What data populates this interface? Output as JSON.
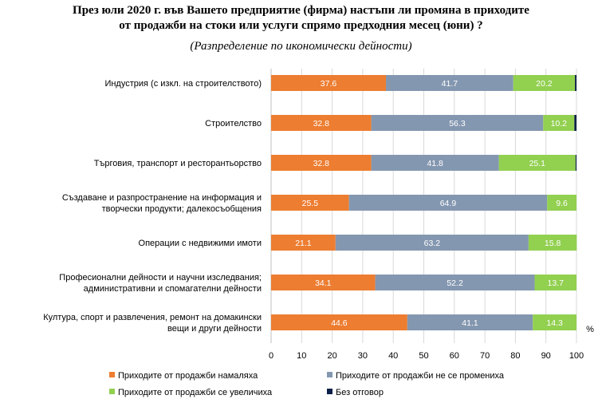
{
  "title_line1": "През юли 2020 г. във Вашето предприятие (фирма) настъпи ли промяна в приходите",
  "title_line2": "от продажби на стоки или услуги спрямо предходния месец (юни) ?",
  "subtitle": "(Разпределение по икономически дейности)",
  "chart_data": {
    "type": "bar",
    "orientation": "horizontal",
    "stacked": true,
    "unit_label": "%",
    "xlim": [
      0,
      100
    ],
    "xticks": [
      0,
      10,
      20,
      30,
      40,
      50,
      60,
      70,
      80,
      90,
      100
    ],
    "categories": [
      [
        "Индустрия (с изкл. на строителството)"
      ],
      [
        "Строителство"
      ],
      [
        "Търговия, транспорт и ресторантьорство"
      ],
      [
        "Създаване и разпространение на информация и",
        "творчески продукти; далекосъобщения"
      ],
      [
        "Операции с недвижими имоти"
      ],
      [
        "Професионални дейности и научни изследвания;",
        "административни и спомагателни дейности"
      ],
      [
        "Култура, спорт и развлечения, ремонт на домакински",
        "вещи и други дейности"
      ]
    ],
    "series": [
      {
        "name": "Приходите от продажби намаляха",
        "color": "#ed7d31",
        "values": [
          37.6,
          32.8,
          32.8,
          25.5,
          21.1,
          34.1,
          44.6
        ]
      },
      {
        "name": "Приходите от продажби не се промениха",
        "color": "#8497b0",
        "values": [
          41.7,
          56.3,
          41.8,
          64.9,
          63.2,
          52.2,
          41.1
        ]
      },
      {
        "name": "Приходите от продажби се увеличиха",
        "color": "#92d050",
        "values": [
          20.2,
          10.2,
          25.1,
          9.6,
          15.8,
          13.7,
          14.3
        ]
      },
      {
        "name": "Без отговор",
        "color": "#0b2049",
        "values": [
          0.5,
          0.7,
          0.3,
          0.0,
          0.0,
          0.0,
          0.0
        ]
      }
    ],
    "data_labels_series": [
      0,
      1,
      2
    ],
    "legend_position": "bottom"
  }
}
